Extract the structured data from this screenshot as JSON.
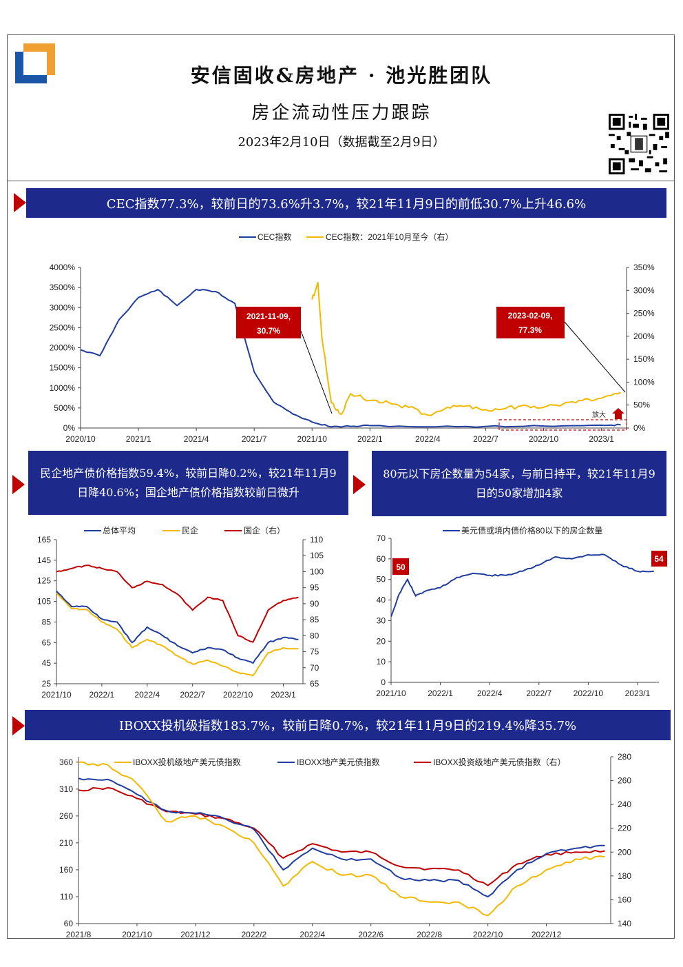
{
  "header": {
    "title": "安信固收&房地产 · 池光胜团队",
    "subtitle": "房企流动性压力跟踪",
    "date": "2023年2月10日（数据截至2月9日）"
  },
  "colors": {
    "navy": "#1d2a8c",
    "blue": "#1f3c9e",
    "yellow": "#f5b800",
    "red": "#c00000",
    "logo_orange": "#f0a030",
    "logo_blue": "#1a55a8"
  },
  "banners": {
    "b1": "CEC指数77.3%，较前日的73.6%升3.7%，较21年11月9日的前低30.7%上升46.6%",
    "b2": "民企地产债价格指数59.4%，较前日降0.2%，较21年11月9日降40.6%；国企地产债价格指数较前日微升",
    "b3": "80元以下房企数量为54家，与前日持平，较21年11月9日的50家增加4家",
    "b4": "IBOXX投机级指数183.7%，较前日降0.7%，较21年11月9日的219.4%降35.7%"
  },
  "chart_data": [
    {
      "type": "line",
      "legend": [
        "CEC指数",
        "CEC指数：2021年10月至今（右）"
      ],
      "left_ticks": [
        "4000%",
        "3500%",
        "3000%",
        "2500%",
        "2000%",
        "1500%",
        "1000%",
        "500%",
        "0%"
      ],
      "right_ticks": [
        "350%",
        "300%",
        "250%",
        "200%",
        "150%",
        "100%",
        "50%",
        "0%"
      ],
      "x_ticks": [
        "2020/10",
        "2021/1",
        "2021/4",
        "2021/7",
        "2021/10",
        "2022/1",
        "2022/4",
        "2022/7",
        "2022/10",
        "2023/1"
      ],
      "ylim_left": [
        0,
        4000
      ],
      "ylim_right": [
        0,
        350
      ],
      "series": [
        {
          "name": "CEC指数",
          "axis": "left",
          "x": [
            "2020/10",
            "2020/11",
            "2020/12",
            "2021/1",
            "2021/2",
            "2021/3",
            "2021/4",
            "2021/5",
            "2021/6",
            "2021/7",
            "2021/8",
            "2021/9",
            "2021/10",
            "2021/11",
            "2021/12",
            "2022/1",
            "2022/4",
            "2022/7",
            "2022/10",
            "2023/1",
            "2023/2"
          ],
          "values": [
            1950,
            1800,
            2700,
            3250,
            3450,
            3050,
            3450,
            3400,
            3100,
            1400,
            650,
            350,
            150,
            30,
            40,
            60,
            30,
            40,
            50,
            70,
            77
          ]
        },
        {
          "name": "CEC指数：2021年10月至今（右）",
          "axis": "right",
          "x": [
            "2021/10",
            "2021/10.3",
            "2021/10.5",
            "2021/11",
            "2021/11.5",
            "2021/12",
            "2022/1",
            "2022/2",
            "2022/3",
            "2022/4",
            "2022/5",
            "2022/6",
            "2022/7",
            "2022/8",
            "2022/9",
            "2022/10",
            "2022/11",
            "2022/12",
            "2023/1",
            "2023/2"
          ],
          "values": [
            280,
            318,
            200,
            55,
            30,
            75,
            60,
            55,
            45,
            28,
            45,
            48,
            40,
            42,
            50,
            45,
            52,
            60,
            65,
            77
          ]
        }
      ],
      "annotations": [
        {
          "text_line1": "2021-11-09,",
          "text_line2": "30.7%"
        },
        {
          "text_line1": "2023-02-09,",
          "text_line2": "77.3%"
        },
        {
          "text": "放大"
        }
      ]
    },
    {
      "type": "line",
      "legend": [
        "总体平均",
        "民企",
        "国企（右）"
      ],
      "left_ticks": [
        "165",
        "145",
        "125",
        "105",
        "85",
        "65",
        "45",
        "25"
      ],
      "right_ticks": [
        "110",
        "105",
        "100",
        "95",
        "90",
        "85",
        "80",
        "75",
        "70",
        "65"
      ],
      "x_ticks": [
        "2021/10",
        "2022/1",
        "2022/4",
        "2022/7",
        "2022/10",
        "2023/1"
      ],
      "ylim_left": [
        25,
        165
      ],
      "ylim_right": [
        65,
        110
      ],
      "series": [
        {
          "name": "总体平均",
          "axis": "left",
          "x": [
            "2021/10",
            "2021/11",
            "2021/12",
            "2022/1",
            "2022/2",
            "2022/3",
            "2022/4",
            "2022/5",
            "2022/6",
            "2022/7",
            "2022/8",
            "2022/9",
            "2022/10",
            "2022/11",
            "2022/12",
            "2023/1",
            "2023/2"
          ],
          "values": [
            115,
            100,
            100,
            88,
            85,
            65,
            80,
            72,
            62,
            55,
            60,
            58,
            50,
            45,
            65,
            70,
            68
          ]
        },
        {
          "name": "民企",
          "axis": "left",
          "x": [
            "2021/10",
            "2021/11",
            "2021/12",
            "2022/1",
            "2022/2",
            "2022/3",
            "2022/4",
            "2022/5",
            "2022/6",
            "2022/7",
            "2022/8",
            "2022/9",
            "2022/10",
            "2022/11",
            "2022/12",
            "2023/1",
            "2023/2"
          ],
          "values": [
            113,
            98,
            97,
            85,
            78,
            60,
            68,
            62,
            52,
            44,
            48,
            42,
            36,
            33,
            55,
            60,
            59
          ]
        },
        {
          "name": "国企（右）",
          "axis": "right",
          "x": [
            "2021/10",
            "2021/11",
            "2021/12",
            "2022/1",
            "2022/2",
            "2022/3",
            "2022/4",
            "2022/5",
            "2022/6",
            "2022/7",
            "2022/8",
            "2022/9",
            "2022/10",
            "2022/11",
            "2022/12",
            "2023/1",
            "2023/2"
          ],
          "values": [
            100,
            101,
            102,
            101,
            100,
            95,
            97,
            96,
            93,
            88,
            92,
            91,
            80,
            78,
            88,
            91,
            92
          ]
        }
      ]
    },
    {
      "type": "line",
      "legend": [
        "美元债或境内债价格80以下的房企数量"
      ],
      "y_ticks": [
        "70",
        "60",
        "50",
        "40",
        "30",
        "20",
        "10",
        "0"
      ],
      "x_ticks": [
        "2021/10",
        "2022/1",
        "2022/4",
        "2022/7",
        "2022/10",
        "2023/1"
      ],
      "ylim": [
        0,
        70
      ],
      "series": [
        {
          "name": "美元债或境内债价格80以下的房企数量",
          "x": [
            "2021/10",
            "2021/10.5",
            "2021/11",
            "2021/11.5",
            "2021/12",
            "2022/1",
            "2022/2",
            "2022/3",
            "2022/4",
            "2022/5",
            "2022/6",
            "2022/7",
            "2022/8",
            "2022/9",
            "2022/10",
            "2022/11",
            "2022/12",
            "2023/1",
            "2023/2"
          ],
          "values": [
            32,
            43,
            50,
            42,
            44,
            46,
            51,
            53,
            52,
            52,
            54,
            57,
            61,
            60,
            62,
            62,
            57,
            54,
            54
          ]
        }
      ],
      "labels": [
        "50",
        "54"
      ]
    },
    {
      "type": "line",
      "legend": [
        "IBOXX投机级地产美元债指数",
        "IBOXX地产美元债指数",
        "IBOXX投资级地产美元债指数（右）"
      ],
      "left_ticks": [
        "360",
        "310",
        "260",
        "210",
        "160",
        "110",
        "60"
      ],
      "right_ticks": [
        "280",
        "260",
        "240",
        "220",
        "200",
        "180",
        "160",
        "140"
      ],
      "x_ticks": [
        "2021/8",
        "2021/10",
        "2021/12",
        "2022/2",
        "2022/4",
        "2022/6",
        "2022/8",
        "2022/10",
        "2022/12"
      ],
      "ylim_left": [
        60,
        370
      ],
      "ylim_right": [
        140,
        280
      ],
      "series": [
        {
          "name": "IBOXX投机级地产美元债指数",
          "axis": "left",
          "x": [
            "2021/8",
            "2021/9",
            "2021/10",
            "2021/11",
            "2021/12",
            "2022/1",
            "2022/2",
            "2022/3",
            "2022/4",
            "2022/5",
            "2022/6",
            "2022/7",
            "2022/8",
            "2022/9",
            "2022/10",
            "2022/11",
            "2022/12",
            "2023/1",
            "2023/2"
          ],
          "values": [
            360,
            355,
            320,
            250,
            260,
            240,
            210,
            130,
            175,
            150,
            150,
            110,
            100,
            100,
            75,
            130,
            160,
            180,
            184
          ]
        },
        {
          "name": "IBOXX地产美元债指数",
          "axis": "left",
          "x": [
            "2021/8",
            "2021/9",
            "2021/10",
            "2021/11",
            "2021/12",
            "2022/1",
            "2022/2",
            "2022/3",
            "2022/4",
            "2022/5",
            "2022/6",
            "2022/7",
            "2022/8",
            "2022/9",
            "2022/10",
            "2022/11",
            "2022/12",
            "2023/1",
            "2023/2"
          ],
          "values": [
            330,
            328,
            300,
            270,
            265,
            255,
            235,
            160,
            200,
            180,
            180,
            145,
            140,
            140,
            110,
            160,
            190,
            200,
            205
          ]
        },
        {
          "name": "IBOXX投资级地产美元债指数（右）",
          "axis": "right",
          "x": [
            "2021/8",
            "2021/9",
            "2021/10",
            "2021/11",
            "2021/12",
            "2022/1",
            "2022/2",
            "2022/3",
            "2022/4",
            "2022/5",
            "2022/6",
            "2022/7",
            "2022/8",
            "2022/9",
            "2022/10",
            "2022/11",
            "2022/12",
            "2023/1",
            "2023/2"
          ],
          "values": [
            252,
            254,
            245,
            234,
            232,
            228,
            220,
            195,
            207,
            200,
            200,
            188,
            186,
            185,
            172,
            190,
            198,
            200,
            201
          ]
        }
      ]
    }
  ]
}
